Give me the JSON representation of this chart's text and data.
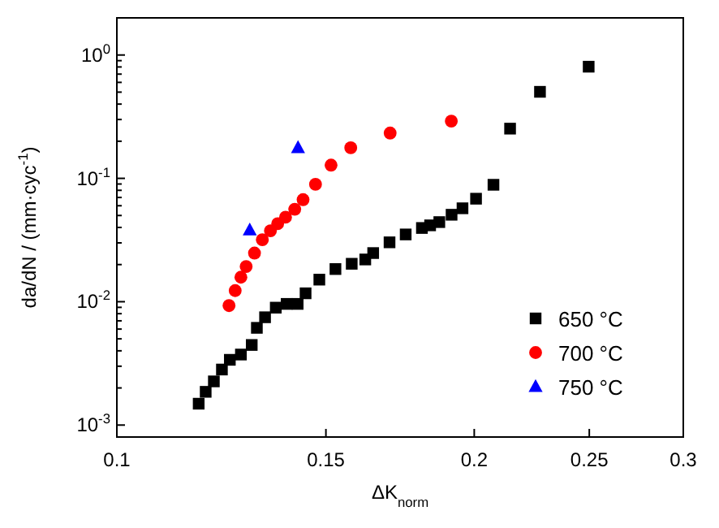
{
  "chart_data": {
    "type": "scatter",
    "xlabel": "ΔK$_{norm}$",
    "ylabel": "da/dN / (mm·cyc$^{-1}$)",
    "log": "xy",
    "xlim": [
      0.1,
      0.3
    ],
    "xticks": [
      0.1,
      0.15,
      0.2,
      0.25,
      0.3
    ],
    "ylim": [
      0.0008,
      2
    ],
    "yticks": [
      {
        "value": 0.001,
        "label": "10$^{-3}$"
      },
      {
        "value": 0.002,
        "label": null
      },
      {
        "value": 0.003,
        "label": null
      },
      {
        "value": 0.004,
        "label": null
      },
      {
        "value": 0.005,
        "label": null
      },
      {
        "value": 0.006,
        "label": null
      },
      {
        "value": 0.007,
        "label": null
      },
      {
        "value": 0.008,
        "label": null
      },
      {
        "value": 0.009,
        "label": null
      },
      {
        "value": 0.01,
        "label": "10$^{-2}$"
      },
      {
        "value": 0.02,
        "label": null
      },
      {
        "value": 0.03,
        "label": null
      },
      {
        "value": 0.04,
        "label": null
      },
      {
        "value": 0.05,
        "label": null
      },
      {
        "value": 0.06,
        "label": null
      },
      {
        "value": 0.07,
        "label": null
      },
      {
        "value": 0.08,
        "label": null
      },
      {
        "value": 0.09,
        "label": null
      },
      {
        "value": 0.1,
        "label": "10$^{-1}$"
      },
      {
        "value": 0.2,
        "label": null
      },
      {
        "value": 0.3,
        "label": null
      },
      {
        "value": 0.4,
        "label": null
      },
      {
        "value": 0.5,
        "label": null
      },
      {
        "value": 0.6,
        "label": null
      },
      {
        "value": 0.7,
        "label": null
      },
      {
        "value": 0.8,
        "label": null
      },
      {
        "value": 0.9,
        "label": null
      },
      {
        "value": 1,
        "label": "10$^{0}$"
      }
    ],
    "grid": false,
    "legend": "bottom right",
    "series": [
      {
        "name": "650 °C",
        "color": "#000000",
        "marker": "square",
        "x": [
          0.1172,
          0.1188,
          0.1207,
          0.1226,
          0.1245,
          0.1272,
          0.1299,
          0.1312,
          0.1333,
          0.1361,
          0.139,
          0.142,
          0.1442,
          0.1481,
          0.1528,
          0.1577,
          0.1619,
          0.1644,
          0.1697,
          0.1751,
          0.1807,
          0.1836,
          0.1869,
          0.1914,
          0.1955,
          0.2007,
          0.2076,
          0.2144,
          0.2272,
          0.2497
        ],
        "values": [
          0.00149,
          0.00186,
          0.00226,
          0.00282,
          0.00338,
          0.00373,
          0.00446,
          0.00614,
          0.00748,
          0.00895,
          0.0096,
          0.0096,
          0.0117,
          0.0151,
          0.0184,
          0.0203,
          0.022,
          0.0248,
          0.0303,
          0.0351,
          0.0396,
          0.0416,
          0.0442,
          0.0507,
          0.0572,
          0.0684,
          0.0887,
          0.253,
          0.503,
          0.804
        ]
      },
      {
        "name": "700 °C",
        "color": "#ff0000",
        "marker": "circle",
        "x": [
          0.1243,
          0.1258,
          0.1272,
          0.1285,
          0.1306,
          0.1326,
          0.1347,
          0.1366,
          0.1387,
          0.1412,
          0.1435,
          0.147,
          0.1515,
          0.1574,
          0.1699,
          0.1913
        ],
        "values": [
          0.0093,
          0.0123,
          0.0158,
          0.0193,
          0.0248,
          0.0318,
          0.0376,
          0.0429,
          0.0484,
          0.0562,
          0.0672,
          0.0895,
          0.128,
          0.177,
          0.233,
          0.291
        ]
      },
      {
        "name": "750 °C",
        "color": "#0000ff",
        "marker": "triangle",
        "x": [
          0.1294,
          0.1421
        ],
        "values": [
          0.038,
          0.177
        ]
      }
    ]
  }
}
